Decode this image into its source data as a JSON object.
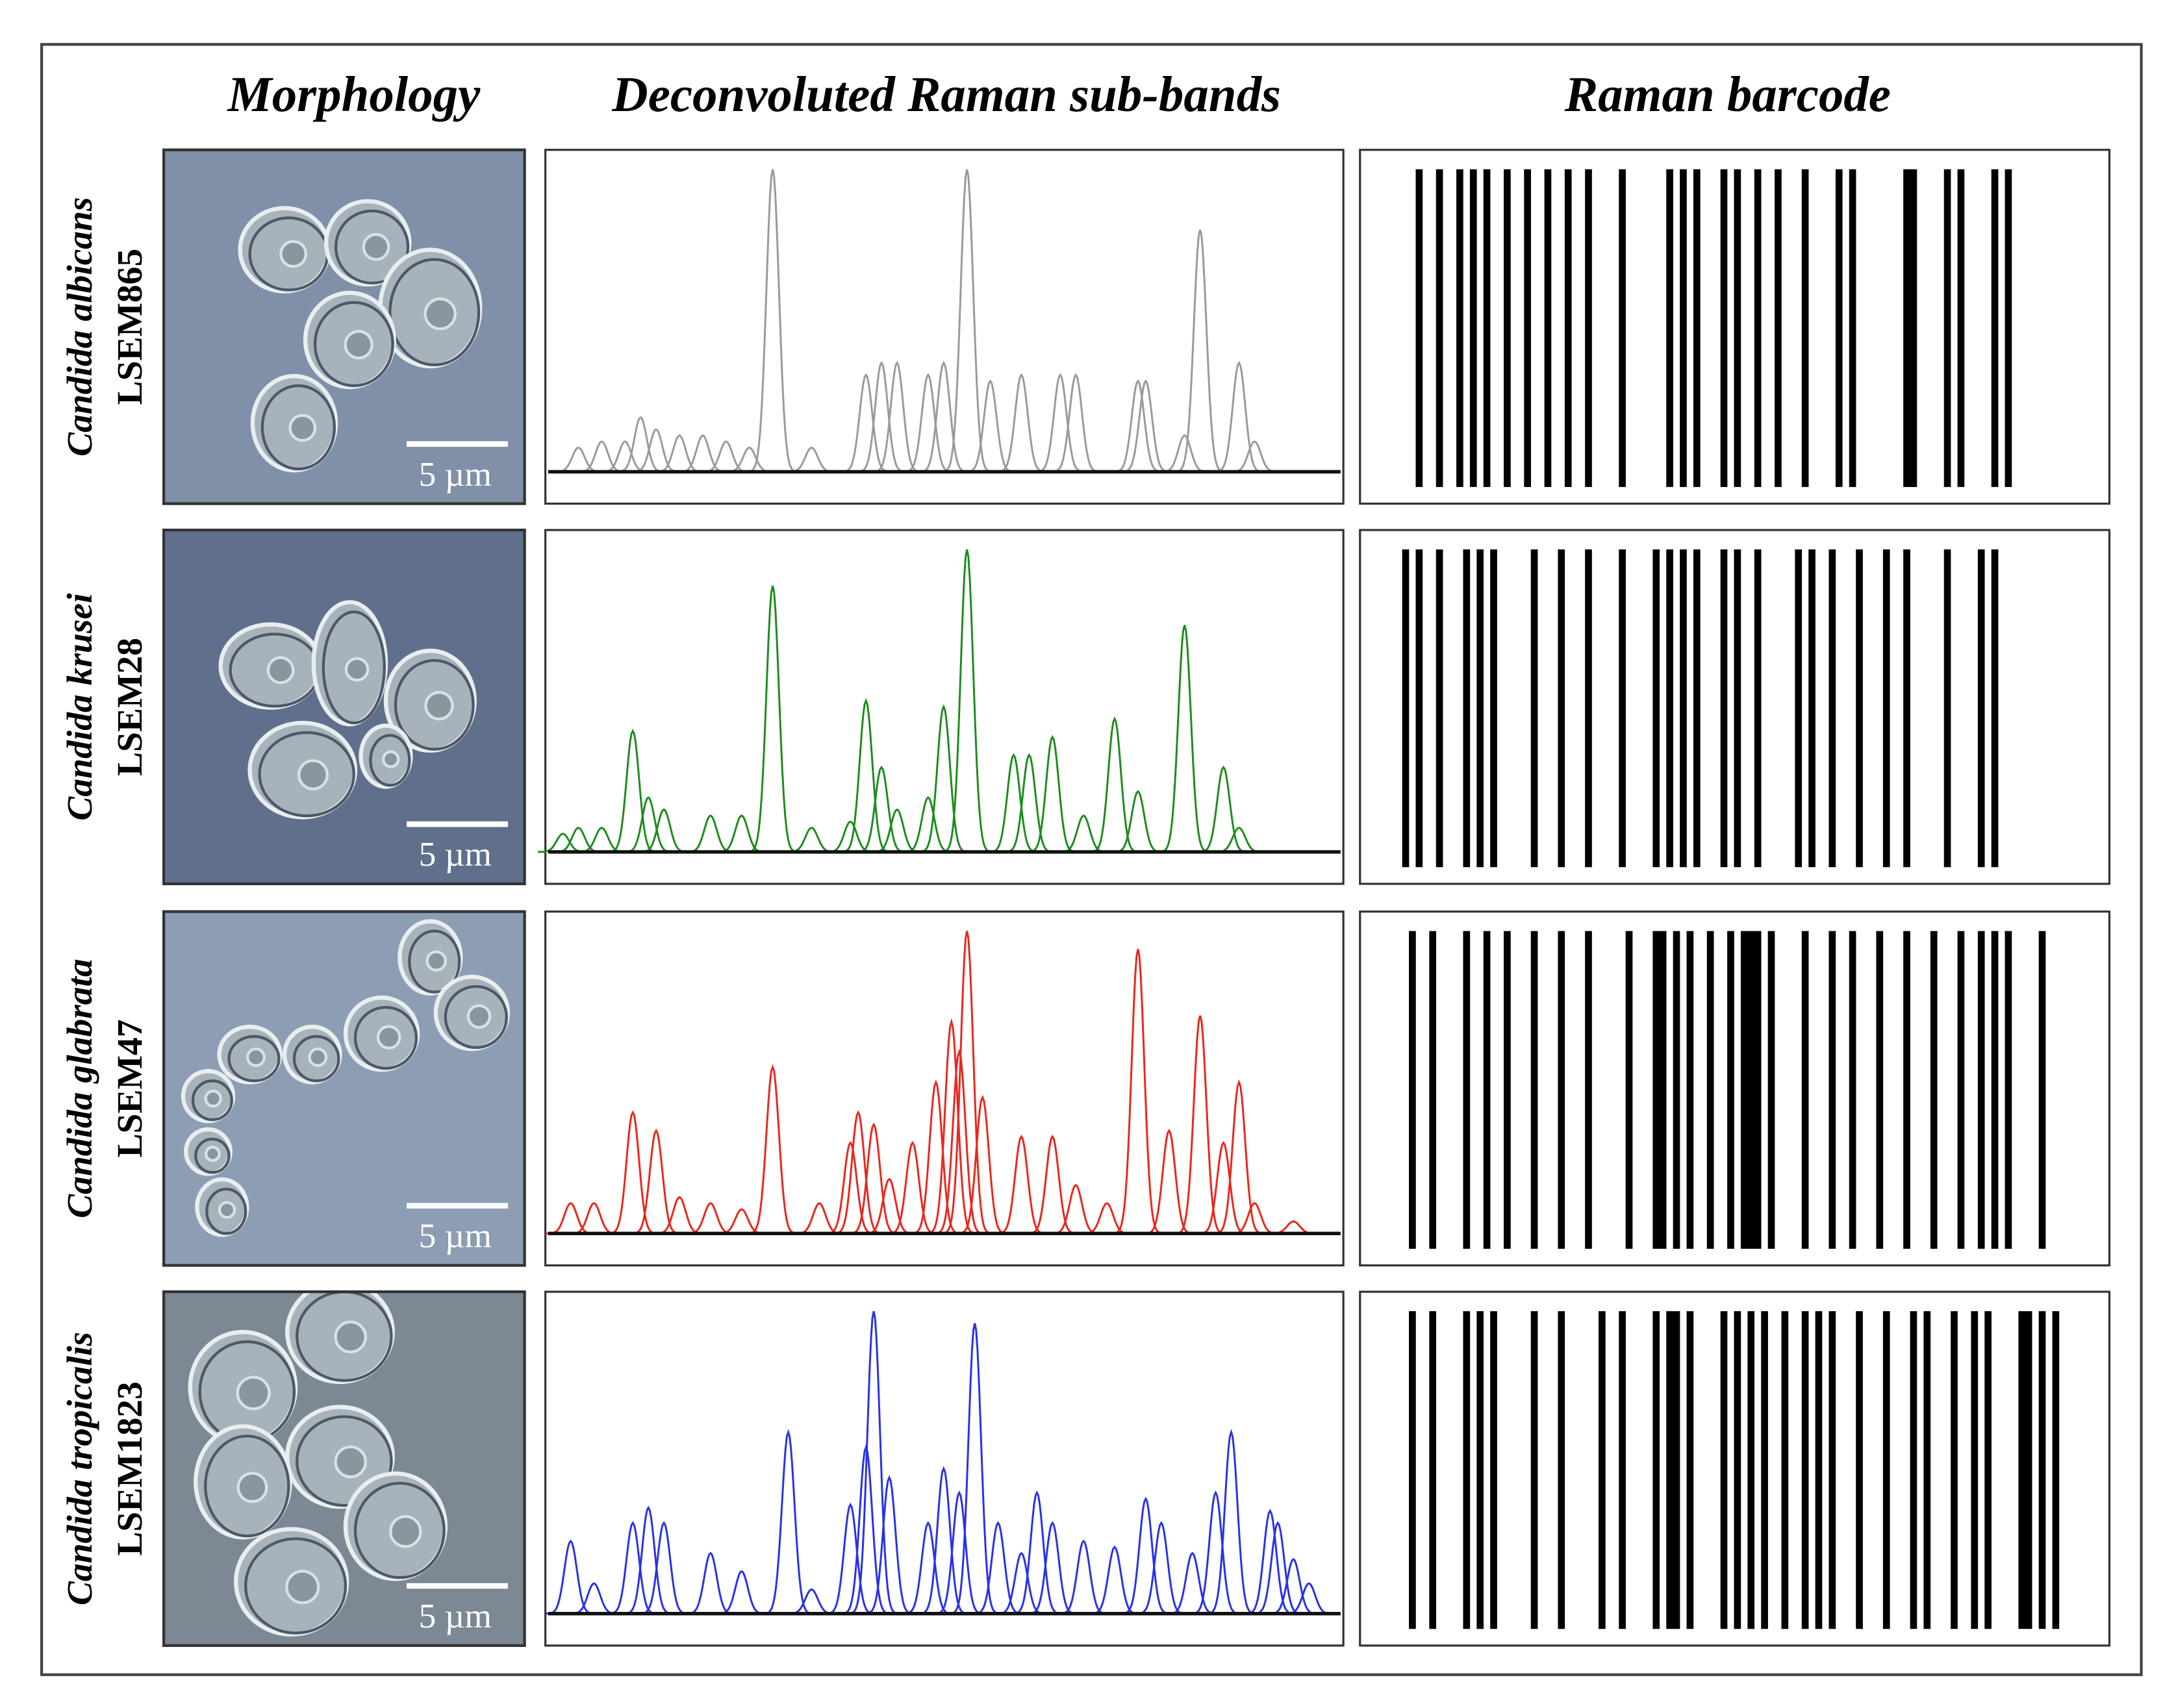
{
  "columns": [
    "Morphology",
    "Deconvoluted Raman sub-bands",
    "Raman barcode"
  ],
  "rows": [
    {
      "species": "Candida albicans",
      "strain": "LSEM865",
      "scale_bar": "5 µm",
      "color": "#9a9a9a",
      "peaks": [
        {
          "x": 3,
          "h": 0.08
        },
        {
          "x": 6,
          "h": 0.1
        },
        {
          "x": 9,
          "h": 0.1
        },
        {
          "x": 11,
          "h": 0.18
        },
        {
          "x": 13,
          "h": 0.14
        },
        {
          "x": 16,
          "h": 0.12
        },
        {
          "x": 19,
          "h": 0.12
        },
        {
          "x": 22,
          "h": 0.1
        },
        {
          "x": 25,
          "h": 0.08
        },
        {
          "x": 28,
          "h": 1.0
        },
        {
          "x": 33,
          "h": 0.08
        },
        {
          "x": 40,
          "h": 0.32
        },
        {
          "x": 42,
          "h": 0.36
        },
        {
          "x": 44,
          "h": 0.36
        },
        {
          "x": 48,
          "h": 0.32
        },
        {
          "x": 50,
          "h": 0.36
        },
        {
          "x": 53,
          "h": 1.0
        },
        {
          "x": 56,
          "h": 0.3
        },
        {
          "x": 60,
          "h": 0.32
        },
        {
          "x": 65,
          "h": 0.32
        },
        {
          "x": 67,
          "h": 0.32
        },
        {
          "x": 75,
          "h": 0.3
        },
        {
          "x": 76,
          "h": 0.3
        },
        {
          "x": 81,
          "h": 0.12
        },
        {
          "x": 83,
          "h": 0.8
        },
        {
          "x": 88,
          "h": 0.36
        },
        {
          "x": 90,
          "h": 0.1
        }
      ]
    },
    {
      "species": "Candida krusei",
      "strain": "LSEM28",
      "scale_bar": "5 µm",
      "color": "#1e8c1e",
      "peaks": [
        {
          "x": 1,
          "h": 0.06
        },
        {
          "x": 3,
          "h": 0.08
        },
        {
          "x": 6,
          "h": 0.08
        },
        {
          "x": 10,
          "h": 0.4
        },
        {
          "x": 12,
          "h": 0.18
        },
        {
          "x": 14,
          "h": 0.14
        },
        {
          "x": 20,
          "h": 0.12
        },
        {
          "x": 24,
          "h": 0.12
        },
        {
          "x": 28,
          "h": 0.88
        },
        {
          "x": 33,
          "h": 0.08
        },
        {
          "x": 38,
          "h": 0.1
        },
        {
          "x": 40,
          "h": 0.5
        },
        {
          "x": 42,
          "h": 0.28
        },
        {
          "x": 44,
          "h": 0.14
        },
        {
          "x": 48,
          "h": 0.18
        },
        {
          "x": 50,
          "h": 0.48
        },
        {
          "x": 53,
          "h": 1.0
        },
        {
          "x": 59,
          "h": 0.32
        },
        {
          "x": 61,
          "h": 0.32
        },
        {
          "x": 64,
          "h": 0.38
        },
        {
          "x": 68,
          "h": 0.12
        },
        {
          "x": 72,
          "h": 0.44
        },
        {
          "x": 75,
          "h": 0.2
        },
        {
          "x": 81,
          "h": 0.75
        },
        {
          "x": 86,
          "h": 0.28
        },
        {
          "x": 88,
          "h": 0.08
        }
      ]
    },
    {
      "species": "Candida glabrata",
      "strain": "LSEM47",
      "scale_bar": "5 µm",
      "color": "#e8281e",
      "peaks": [
        {
          "x": 2,
          "h": 0.1
        },
        {
          "x": 5,
          "h": 0.1
        },
        {
          "x": 10,
          "h": 0.4
        },
        {
          "x": 13,
          "h": 0.34
        },
        {
          "x": 16,
          "h": 0.12
        },
        {
          "x": 20,
          "h": 0.1
        },
        {
          "x": 24,
          "h": 0.08
        },
        {
          "x": 28,
          "h": 0.55
        },
        {
          "x": 34,
          "h": 0.1
        },
        {
          "x": 38,
          "h": 0.3
        },
        {
          "x": 39,
          "h": 0.4
        },
        {
          "x": 41,
          "h": 0.36
        },
        {
          "x": 43,
          "h": 0.18
        },
        {
          "x": 46,
          "h": 0.3
        },
        {
          "x": 49,
          "h": 0.5
        },
        {
          "x": 51,
          "h": 0.7
        },
        {
          "x": 52,
          "h": 0.6
        },
        {
          "x": 53,
          "h": 1.0
        },
        {
          "x": 55,
          "h": 0.45
        },
        {
          "x": 60,
          "h": 0.32
        },
        {
          "x": 64,
          "h": 0.32
        },
        {
          "x": 67,
          "h": 0.16
        },
        {
          "x": 71,
          "h": 0.1
        },
        {
          "x": 75,
          "h": 0.94
        },
        {
          "x": 79,
          "h": 0.34
        },
        {
          "x": 83,
          "h": 0.72
        },
        {
          "x": 86,
          "h": 0.3
        },
        {
          "x": 88,
          "h": 0.5
        },
        {
          "x": 90,
          "h": 0.1
        },
        {
          "x": 95,
          "h": 0.04
        }
      ]
    },
    {
      "species": "Candida tropicalis",
      "strain": "LSEM1823",
      "scale_bar": "5 µm",
      "color": "#2832e8",
      "peaks": [
        {
          "x": 2,
          "h": 0.24
        },
        {
          "x": 5,
          "h": 0.1
        },
        {
          "x": 10,
          "h": 0.3
        },
        {
          "x": 12,
          "h": 0.35
        },
        {
          "x": 14,
          "h": 0.3
        },
        {
          "x": 20,
          "h": 0.2
        },
        {
          "x": 24,
          "h": 0.14
        },
        {
          "x": 30,
          "h": 0.6
        },
        {
          "x": 33,
          "h": 0.08
        },
        {
          "x": 38,
          "h": 0.36
        },
        {
          "x": 40,
          "h": 0.55
        },
        {
          "x": 41,
          "h": 1.0
        },
        {
          "x": 43,
          "h": 0.45
        },
        {
          "x": 48,
          "h": 0.3
        },
        {
          "x": 50,
          "h": 0.48
        },
        {
          "x": 52,
          "h": 0.4
        },
        {
          "x": 54,
          "h": 0.96
        },
        {
          "x": 57,
          "h": 0.3
        },
        {
          "x": 60,
          "h": 0.2
        },
        {
          "x": 62,
          "h": 0.4
        },
        {
          "x": 64,
          "h": 0.3
        },
        {
          "x": 68,
          "h": 0.24
        },
        {
          "x": 72,
          "h": 0.22
        },
        {
          "x": 76,
          "h": 0.38
        },
        {
          "x": 78,
          "h": 0.3
        },
        {
          "x": 82,
          "h": 0.2
        },
        {
          "x": 85,
          "h": 0.4
        },
        {
          "x": 87,
          "h": 0.6
        },
        {
          "x": 92,
          "h": 0.34
        },
        {
          "x": 93,
          "h": 0.3
        },
        {
          "x": 95,
          "h": 0.18
        },
        {
          "x": 97,
          "h": 0.1
        }
      ]
    }
  ]
}
